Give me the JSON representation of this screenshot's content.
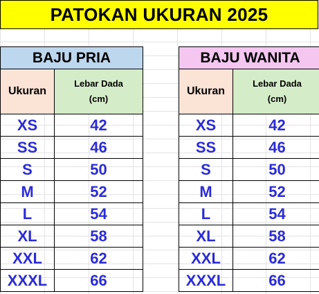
{
  "title": "PATOKAN UKURAN 2025",
  "headers": {
    "size": "Ukuran",
    "chest": "Lebar Dada",
    "chest_unit": "(cm)"
  },
  "men": {
    "title": "BAJU PRIA",
    "header_color": "#bdd7ee",
    "rows": [
      {
        "size": "XS",
        "chest": "42"
      },
      {
        "size": "SS",
        "chest": "46"
      },
      {
        "size": "S",
        "chest": "50"
      },
      {
        "size": "M",
        "chest": "52"
      },
      {
        "size": "L",
        "chest": "54"
      },
      {
        "size": "XL",
        "chest": "58"
      },
      {
        "size": "XXL",
        "chest": "62"
      },
      {
        "size": "XXXL",
        "chest": "66"
      }
    ]
  },
  "women": {
    "title": "BAJU WANITA",
    "header_color": "#f4c6f0",
    "rows": [
      {
        "size": "XS",
        "chest": "42"
      },
      {
        "size": "SS",
        "chest": "46"
      },
      {
        "size": "S",
        "chest": "50"
      },
      {
        "size": "M",
        "chest": "52"
      },
      {
        "size": "L",
        "chest": "54"
      },
      {
        "size": "XL",
        "chest": "58"
      },
      {
        "size": "XXL",
        "chest": "62"
      },
      {
        "size": "XXXL",
        "chest": "66"
      }
    ]
  },
  "colors": {
    "title_bg": "#ffff00",
    "size_header_bg": "#fbe3d6",
    "chest_header_bg": "#d4ecc8",
    "value_text": "#2b2bd6"
  }
}
